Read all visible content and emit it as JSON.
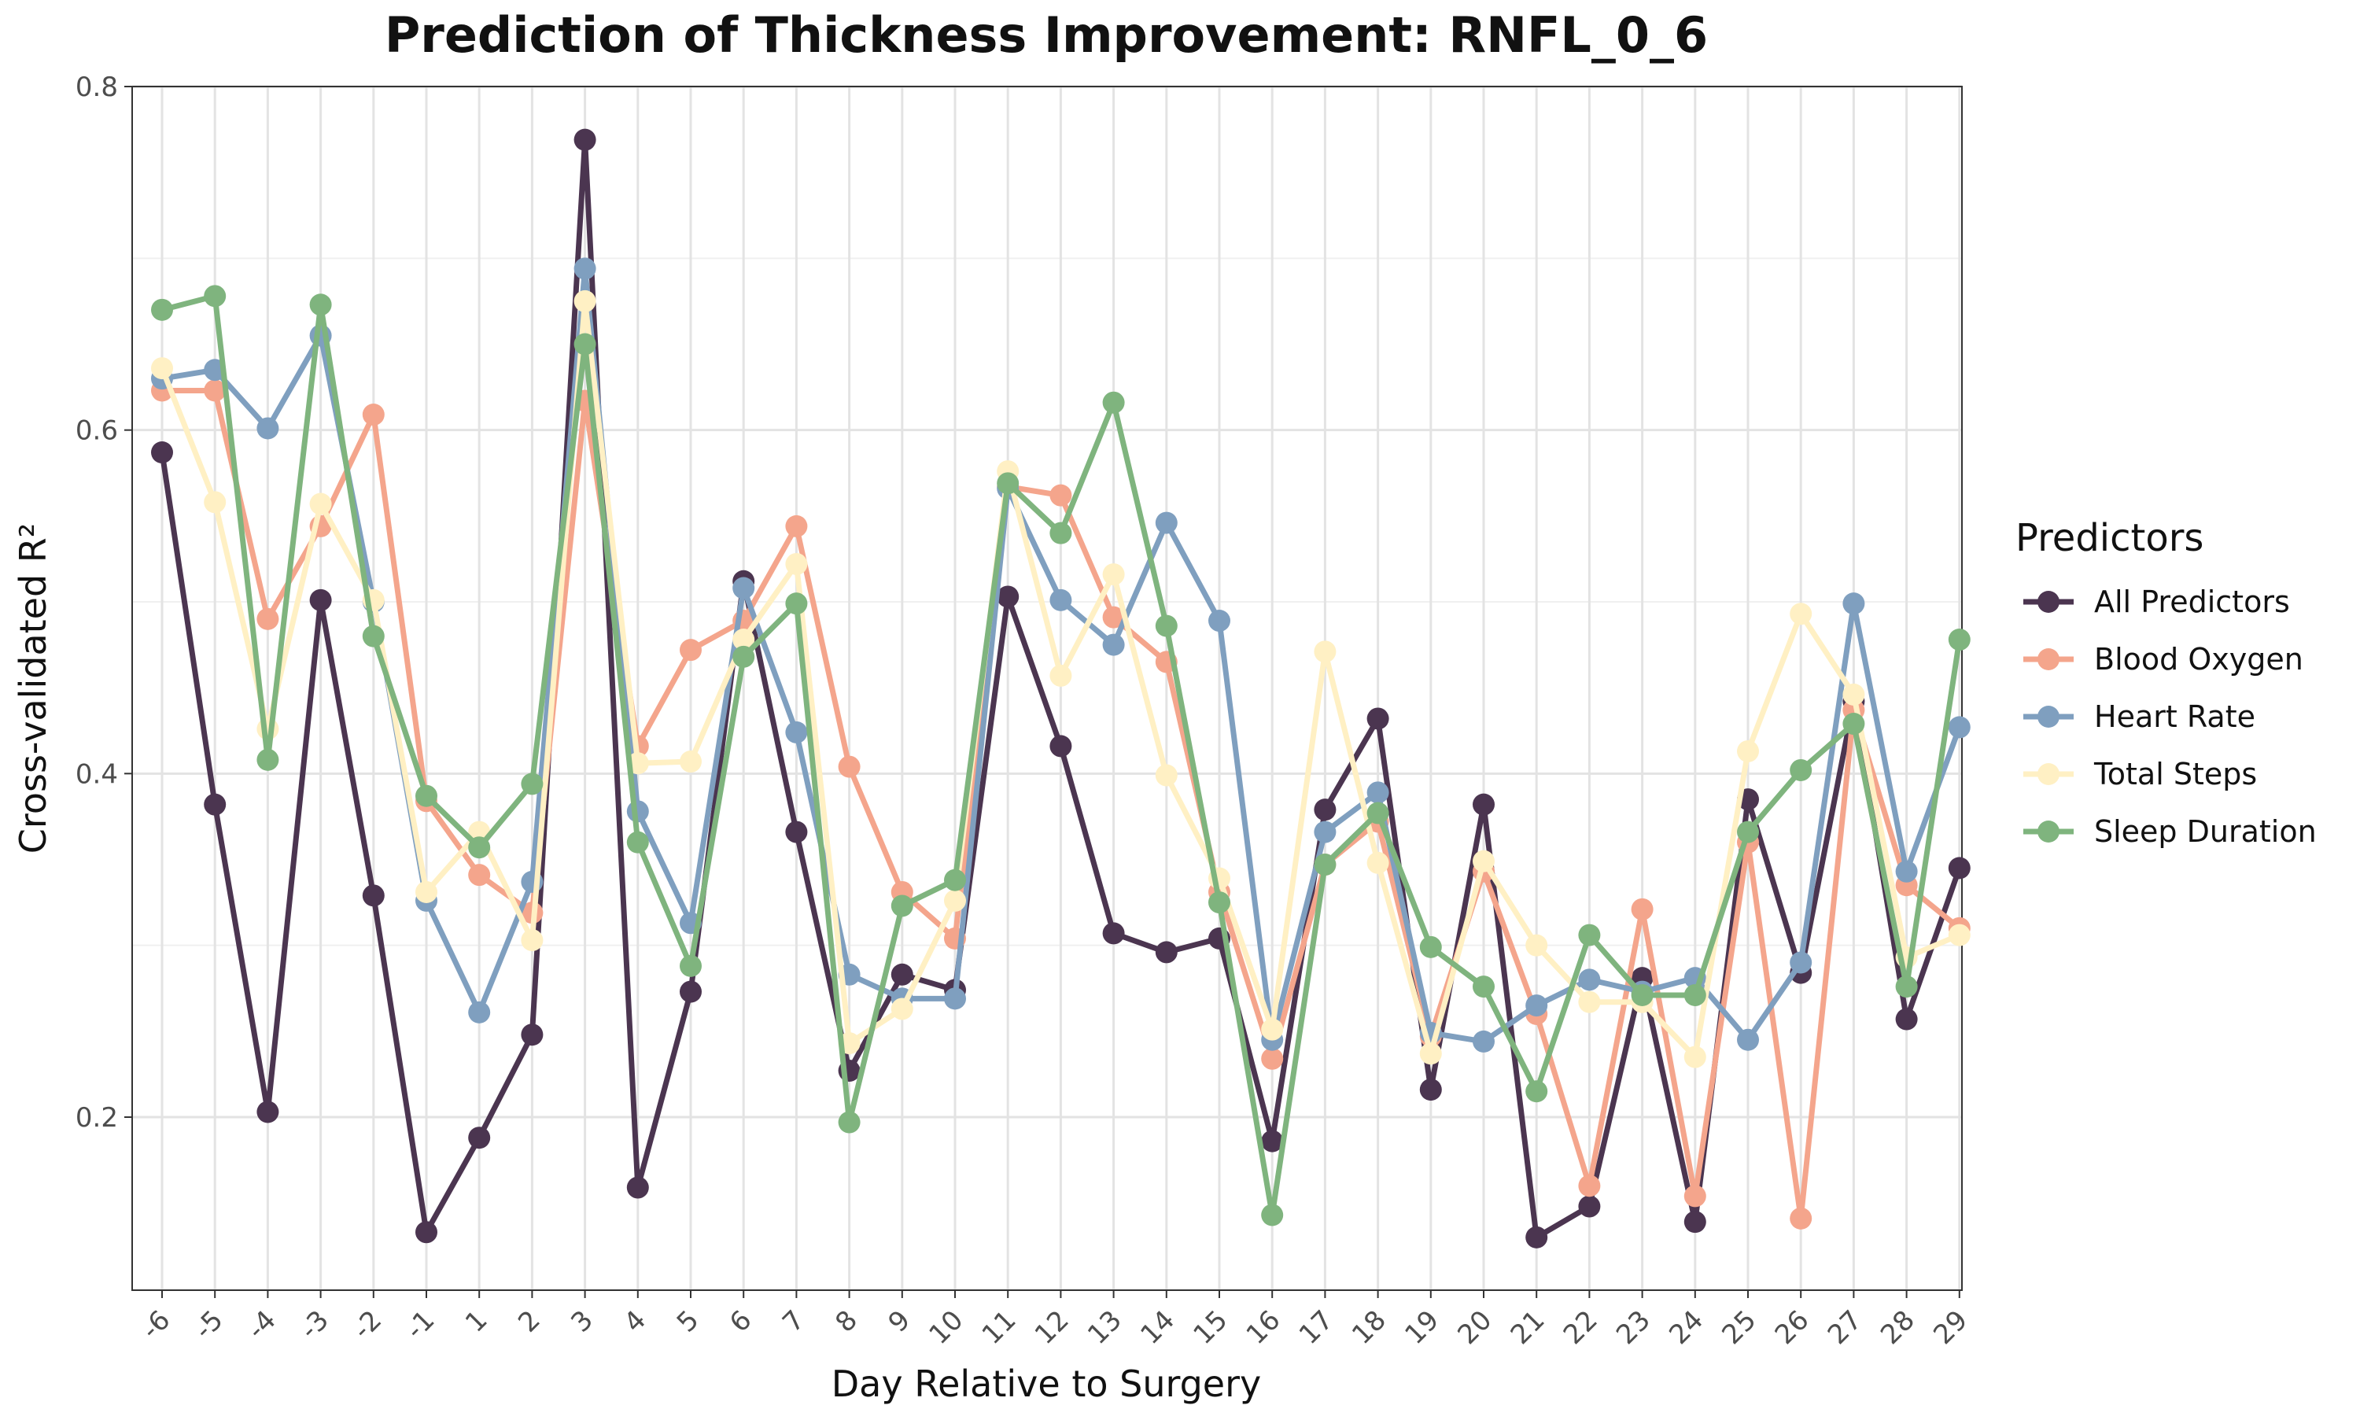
{
  "chart_data": {
    "type": "line",
    "title": "Prediction of Thickness Improvement: RNFL_0_6",
    "xlabel": "Day Relative to Surgery",
    "ylabel": "Cross-validated R²",
    "x": [
      -6,
      -5,
      -4,
      -3,
      -2,
      -1,
      1,
      2,
      3,
      4,
      5,
      6,
      7,
      8,
      9,
      10,
      11,
      12,
      13,
      14,
      15,
      16,
      17,
      18,
      19,
      20,
      21,
      22,
      23,
      24,
      25,
      26,
      27,
      28,
      29
    ],
    "yticks": [
      "0.2",
      "0.4",
      "0.6",
      "0.8"
    ],
    "ylim": [
      0.1,
      0.8
    ],
    "grid": true,
    "legend": {
      "title": "Predictors",
      "position": "right"
    },
    "series": [
      {
        "name": "All Predictors",
        "color": "#4b3550",
        "values": [
          0.587,
          0.382,
          0.203,
          0.501,
          0.329,
          0.133,
          0.188,
          0.248,
          0.769,
          0.159,
          0.273,
          0.512,
          0.366,
          0.227,
          0.283,
          0.274,
          0.503,
          0.416,
          0.307,
          0.296,
          0.304,
          0.186,
          0.379,
          0.432,
          0.216,
          0.382,
          0.13,
          0.148,
          0.281,
          0.139,
          0.385,
          0.284,
          0.442,
          0.257,
          0.345
        ]
      },
      {
        "name": "Blood Oxygen",
        "color": "#f4a58c",
        "values": [
          0.623,
          0.623,
          0.49,
          0.544,
          0.609,
          0.384,
          0.341,
          0.319,
          0.617,
          0.416,
          0.472,
          0.489,
          0.544,
          0.404,
          0.331,
          0.304,
          0.567,
          0.562,
          0.491,
          0.465,
          0.331,
          0.234,
          0.347,
          0.372,
          0.247,
          0.343,
          0.26,
          0.16,
          0.321,
          0.154,
          0.36,
          0.141,
          0.437,
          0.335,
          0.31
        ]
      },
      {
        "name": "Heart Rate",
        "color": "#7f9fbf",
        "values": [
          0.63,
          0.635,
          0.601,
          0.655,
          0.5,
          0.326,
          0.261,
          0.337,
          0.694,
          0.378,
          0.313,
          0.508,
          0.424,
          0.283,
          0.269,
          0.269,
          0.566,
          0.501,
          0.475,
          0.546,
          0.489,
          0.245,
          0.366,
          0.389,
          0.249,
          0.244,
          0.265,
          0.28,
          0.273,
          0.281,
          0.245,
          0.29,
          0.499,
          0.343,
          0.427
        ]
      },
      {
        "name": "Total Steps",
        "color": "#fff0c4",
        "values": [
          0.636,
          0.558,
          0.426,
          0.557,
          0.501,
          0.331,
          0.366,
          0.303,
          0.675,
          0.406,
          0.407,
          0.478,
          0.522,
          0.243,
          0.263,
          0.326,
          0.576,
          0.457,
          0.516,
          0.399,
          0.339,
          0.251,
          0.471,
          0.348,
          0.237,
          0.349,
          0.3,
          0.267,
          0.267,
          0.235,
          0.413,
          0.493,
          0.446,
          0.293,
          0.306
        ]
      },
      {
        "name": "Sleep Duration",
        "color": "#7fb47e",
        "values": [
          0.67,
          0.678,
          0.408,
          0.673,
          0.48,
          0.387,
          0.357,
          0.394,
          0.65,
          0.36,
          0.288,
          0.468,
          0.499,
          0.197,
          0.323,
          0.338,
          0.569,
          0.54,
          0.616,
          0.486,
          0.325,
          0.143,
          0.347,
          0.377,
          0.299,
          0.276,
          0.215,
          0.306,
          0.271,
          0.271,
          0.366,
          0.402,
          0.429,
          0.276,
          0.478
        ]
      }
    ]
  }
}
